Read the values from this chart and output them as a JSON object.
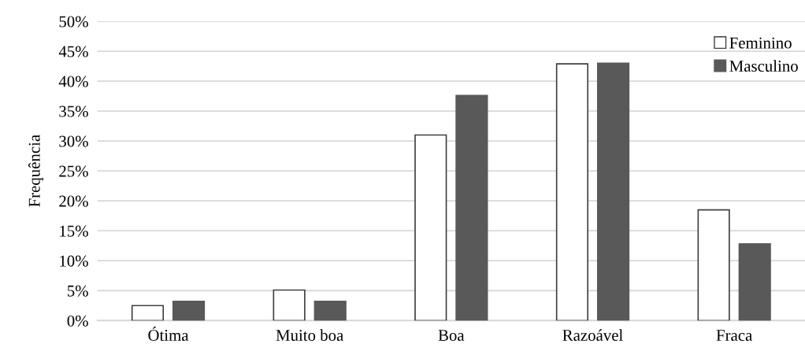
{
  "chart_data": {
    "type": "bar",
    "ylabel": "Frequência",
    "categories": [
      "Ótima",
      "Muito boa",
      "Boa",
      "Razoável",
      "Fraca"
    ],
    "series": [
      {
        "name": "Feminino",
        "color": "#ffffff",
        "values": [
          2.5,
          5.1,
          31.0,
          42.9,
          18.5
        ]
      },
      {
        "name": "Masculino",
        "color": "#595959",
        "values": [
          3.2,
          3.2,
          37.6,
          43.0,
          12.8
        ]
      }
    ],
    "ylim": [
      0,
      50
    ],
    "yticks": [
      {
        "value": 0,
        "label": "0%"
      },
      {
        "value": 5,
        "label": "5%"
      },
      {
        "value": 10,
        "label": "10%"
      },
      {
        "value": 15,
        "label": "15%"
      },
      {
        "value": 20,
        "label": "20%"
      },
      {
        "value": 25,
        "label": "25%"
      },
      {
        "value": 30,
        "label": "30%"
      },
      {
        "value": 35,
        "label": "35%"
      },
      {
        "value": 40,
        "label": "40%"
      },
      {
        "value": 45,
        "label": "45%"
      },
      {
        "value": 50,
        "label": "50%"
      }
    ],
    "grid": "y",
    "legend": "top right"
  }
}
